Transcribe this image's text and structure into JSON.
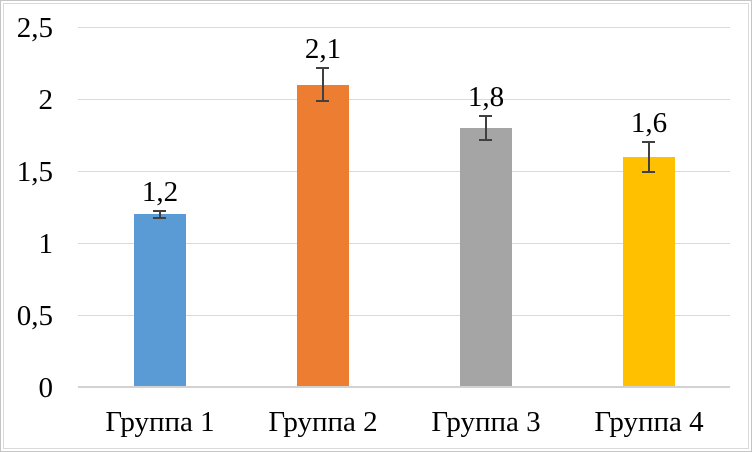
{
  "chart_data": {
    "type": "bar",
    "title": "",
    "xlabel": "",
    "ylabel": "",
    "categories": [
      "Группа 1",
      "Группа 2",
      "Группа 3",
      "Группа 4"
    ],
    "values": [
      1.2,
      2.1,
      1.8,
      1.6
    ],
    "value_labels": [
      "1,2",
      "2,1",
      "1,8",
      "1,6"
    ],
    "errors": [
      0.03,
      0.12,
      0.09,
      0.11
    ],
    "bar_colors": [
      "#5B9BD5",
      "#ED7D31",
      "#A5A5A5",
      "#FFC000"
    ],
    "ylim": [
      0,
      2.5
    ],
    "ytick_step": 0.5,
    "yticks": [
      0,
      0.5,
      1,
      1.5,
      2,
      2.5
    ],
    "ytick_labels": [
      "0",
      "0,5",
      "1",
      "1,5",
      "2",
      "2,5"
    ],
    "grid": true,
    "legend": false,
    "colors": {
      "gridline": "#D9D9D9",
      "axis_line": "#D2D2D2",
      "error_bar": "#404040",
      "text": "#000000",
      "background": "#FFFFFF",
      "frame_border": "#C5C5C5"
    }
  }
}
